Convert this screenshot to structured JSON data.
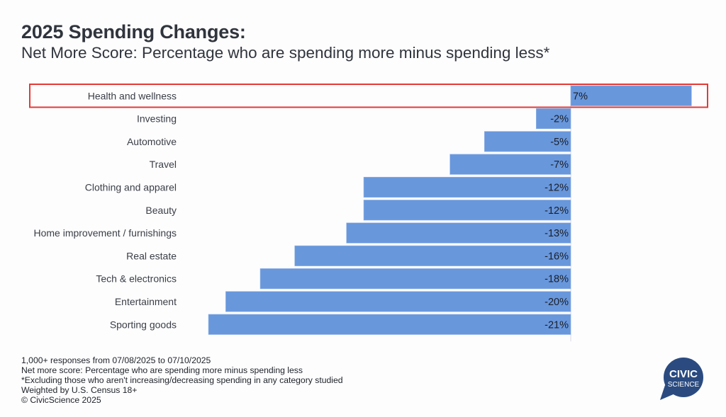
{
  "header": {
    "title": "2025 Spending Changes:",
    "subtitle": "Net More Score: Percentage who are spending more minus spending less*"
  },
  "chart_data": {
    "type": "bar",
    "orientation": "horizontal",
    "title": "2025 Spending Changes:",
    "subtitle": "Net More Score: Percentage who are spending more minus spending less*",
    "xlabel": "",
    "ylabel": "",
    "unit": "%",
    "xlim": [
      -21,
      7
    ],
    "grid": false,
    "legend": "none",
    "bar_color": "#6897dc",
    "highlight_color": "#e53935",
    "highlighted_category": "Health and wellness",
    "categories": [
      "Health and wellness",
      "Investing",
      "Automotive",
      "Travel",
      "Clothing and apparel",
      "Beauty",
      "Home improvement / furnishings",
      "Real estate",
      "Tech & electronics",
      "Entertainment",
      "Sporting goods"
    ],
    "values": [
      7,
      -2,
      -5,
      -7,
      -12,
      -12,
      -13,
      -16,
      -18,
      -20,
      -21
    ],
    "data_labels": [
      "7%",
      "-2%",
      "-5%",
      "-7%",
      "-12%",
      "-12%",
      "-13%",
      "-16%",
      "-18%",
      "-20%",
      "-21%"
    ]
  },
  "footnotes": [
    "1,000+ responses from 07/08/2025 to 07/10/2025",
    "Net more score: Percentage who are spending more minus spending less",
    "*Excluding those who aren't increasing/decreasing spending in any category studied",
    "Weighted by U.S. Census 18+",
    "© CivicScience 2025"
  ],
  "logo": {
    "line1": "CIVIC",
    "line2": "SCIENCE",
    "color": "#2b4b80",
    "icon": "speech-bubble-icon"
  }
}
